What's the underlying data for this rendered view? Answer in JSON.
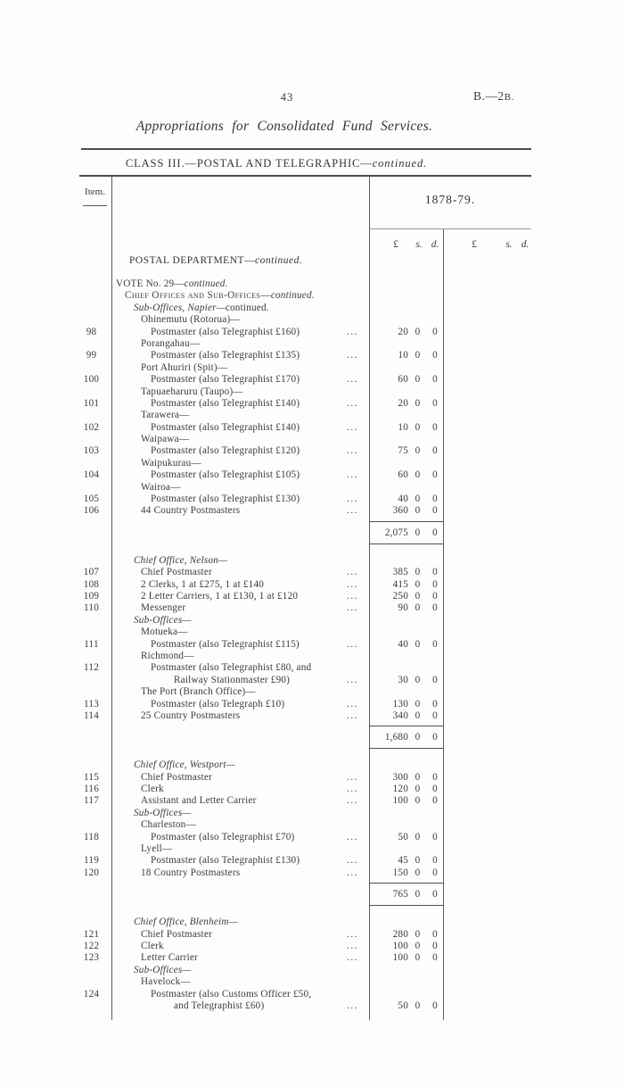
{
  "page": {
    "page_number": "43",
    "doc_ref": {
      "prefix": "B.—2",
      "suffix": "B."
    },
    "title": "Appropriations for Consolidated Fund Services.",
    "class_heading": {
      "main": "CLASS III.—POSTAL AND TELEGRAPHIC—",
      "cont": "continued."
    }
  },
  "table": {
    "item_header": "Item.",
    "year_header": "1878-79.",
    "money": {
      "pounds": "£",
      "shillings": "s.",
      "pence": "d."
    },
    "dept_heading": {
      "main": "POSTAL DEPARTMENT—",
      "cont": "continued."
    },
    "dot_leader": "...",
    "rows": [
      {
        "ind": 0,
        "segs": [
          [
            "VOTE No. 29—",
            ""
          ],
          [
            "continued.",
            "i"
          ]
        ]
      },
      {
        "ind": 1,
        "segs": [
          [
            "Chief Offices and Sub-Offices—",
            "sc"
          ],
          [
            "continued.",
            "i"
          ]
        ]
      },
      {
        "ind": 2,
        "segs": [
          [
            "Sub-Offices, Napier—",
            "i"
          ],
          [
            "continued.",
            ""
          ]
        ]
      },
      {
        "ind": 3,
        "segs": [
          [
            "Ohinemutu (Rotorua)—",
            ""
          ]
        ]
      },
      {
        "item": "98",
        "ind": 4,
        "segs": [
          [
            "Postmaster (also Telegraphist £160)",
            ""
          ]
        ],
        "dots": true,
        "amt": [
          "20",
          "0",
          "0"
        ]
      },
      {
        "ind": 3,
        "segs": [
          [
            "Porangahau—",
            ""
          ]
        ]
      },
      {
        "item": "99",
        "ind": 4,
        "segs": [
          [
            "Postmaster (also Telegraphist £135)",
            ""
          ]
        ],
        "dots": true,
        "amt": [
          "10",
          "0",
          "0"
        ]
      },
      {
        "ind": 3,
        "segs": [
          [
            "Port Ahuriri (Spit)—",
            ""
          ]
        ]
      },
      {
        "item": "100",
        "ind": 4,
        "segs": [
          [
            "Postmaster (also Telegraphist £170)",
            ""
          ]
        ],
        "dots": true,
        "amt": [
          "60",
          "0",
          "0"
        ]
      },
      {
        "ind": 3,
        "segs": [
          [
            "Tapuaeharuru (Taupo)—",
            ""
          ]
        ]
      },
      {
        "item": "101",
        "ind": 4,
        "segs": [
          [
            "Postmaster (also Telegraphist £140)",
            ""
          ]
        ],
        "dots": true,
        "amt": [
          "20",
          "0",
          "0"
        ]
      },
      {
        "ind": 3,
        "segs": [
          [
            "Tarawera—",
            ""
          ]
        ]
      },
      {
        "item": "102",
        "ind": 4,
        "segs": [
          [
            "Postmaster (also Telegraphist £140)",
            ""
          ]
        ],
        "dots": true,
        "amt": [
          "10",
          "0",
          "0"
        ]
      },
      {
        "ind": 3,
        "segs": [
          [
            "Waipawa—",
            ""
          ]
        ]
      },
      {
        "item": "103",
        "ind": 4,
        "segs": [
          [
            "Postmaster (also Telegraphist £120)",
            ""
          ]
        ],
        "dots": true,
        "amt": [
          "75",
          "0",
          "0"
        ]
      },
      {
        "ind": 3,
        "segs": [
          [
            "Waipukurau—",
            ""
          ]
        ]
      },
      {
        "item": "104",
        "ind": 4,
        "segs": [
          [
            "Postmaster (also Telegraphist £105)",
            ""
          ]
        ],
        "dots": true,
        "amt": [
          "60",
          "0",
          "0"
        ]
      },
      {
        "ind": 3,
        "segs": [
          [
            "Wairoa—",
            ""
          ]
        ]
      },
      {
        "item": "105",
        "ind": 4,
        "segs": [
          [
            "Postmaster (also Telegraphist £130)",
            ""
          ]
        ],
        "dots": true,
        "amt": [
          "40",
          "0",
          "0"
        ]
      },
      {
        "item": "106",
        "ind": 3,
        "segs": [
          [
            "44 Country Postmasters",
            ""
          ]
        ],
        "dots": true,
        "amt": [
          "360",
          "0",
          "0"
        ]
      },
      {
        "k": "sub",
        "amt": [
          "2,075",
          "0",
          "0"
        ]
      },
      {
        "ind": 2,
        "segs": [
          [
            "Chief Office, Nelson—",
            "i"
          ]
        ]
      },
      {
        "item": "107",
        "ind": 3,
        "segs": [
          [
            "Chief Postmaster",
            ""
          ]
        ],
        "dots": true,
        "amt": [
          "385",
          "0",
          "0"
        ]
      },
      {
        "item": "108",
        "ind": 3,
        "segs": [
          [
            "2 Clerks, 1 at £275, 1 at £140",
            ""
          ]
        ],
        "dots": true,
        "amt": [
          "415",
          "0",
          "0"
        ]
      },
      {
        "item": "109",
        "ind": 3,
        "segs": [
          [
            "2 Letter Carriers, 1 at £130, 1 at £120",
            ""
          ]
        ],
        "dots": true,
        "amt": [
          "250",
          "0",
          "0"
        ]
      },
      {
        "item": "110",
        "ind": 3,
        "segs": [
          [
            "Messenger",
            ""
          ]
        ],
        "dots": true,
        "amt": [
          "90",
          "0",
          "0"
        ]
      },
      {
        "ind": 2,
        "segs": [
          [
            "Sub-Offices—",
            "i"
          ]
        ]
      },
      {
        "ind": 3,
        "segs": [
          [
            "Motueka—",
            ""
          ]
        ]
      },
      {
        "item": "111",
        "ind": 4,
        "segs": [
          [
            "Postmaster (also Telegraphist £115)",
            ""
          ]
        ],
        "dots": true,
        "amt": [
          "40",
          "0",
          "0"
        ]
      },
      {
        "ind": 3,
        "segs": [
          [
            "Richmond—",
            ""
          ]
        ]
      },
      {
        "item": "112",
        "ind": 4,
        "segs": [
          [
            "Postmaster (also Telegraphist £80, and",
            ""
          ]
        ]
      },
      {
        "ind": 5,
        "segs": [
          [
            "Railway Stationmaster £90)",
            ""
          ]
        ],
        "dots": true,
        "amt": [
          "30",
          "0",
          "0"
        ]
      },
      {
        "ind": 3,
        "segs": [
          [
            "The Port (Branch Office)—",
            ""
          ]
        ]
      },
      {
        "item": "113",
        "ind": 4,
        "segs": [
          [
            "Postmaster (also Telegraph £10)",
            ""
          ]
        ],
        "dots": true,
        "amt": [
          "130",
          "0",
          "0"
        ]
      },
      {
        "item": "114",
        "ind": 3,
        "segs": [
          [
            "25 Country Postmasters",
            ""
          ]
        ],
        "dots": true,
        "amt": [
          "340",
          "0",
          "0"
        ]
      },
      {
        "k": "sub",
        "amt": [
          "1,680",
          "0",
          "0"
        ]
      },
      {
        "ind": 2,
        "segs": [
          [
            "Chief Office, Westport—",
            "i"
          ]
        ]
      },
      {
        "item": "115",
        "ind": 3,
        "segs": [
          [
            "Chief Postmaster",
            ""
          ]
        ],
        "dots": true,
        "amt": [
          "300",
          "0",
          "0"
        ]
      },
      {
        "item": "116",
        "ind": 3,
        "segs": [
          [
            "Clerk",
            ""
          ]
        ],
        "dots": true,
        "amt": [
          "120",
          "0",
          "0"
        ]
      },
      {
        "item": "117",
        "ind": 3,
        "segs": [
          [
            "Assistant and Letter Carrier",
            ""
          ]
        ],
        "dots": true,
        "amt": [
          "100",
          "0",
          "0"
        ]
      },
      {
        "ind": 2,
        "segs": [
          [
            "Sub-Offices—",
            "i"
          ]
        ]
      },
      {
        "ind": 3,
        "segs": [
          [
            "Charleston—",
            ""
          ]
        ]
      },
      {
        "item": "118",
        "ind": 4,
        "segs": [
          [
            "Postmaster (also Telegraphist £70)",
            ""
          ]
        ],
        "dots": true,
        "amt": [
          "50",
          "0",
          "0"
        ]
      },
      {
        "ind": 3,
        "segs": [
          [
            "Lyell—",
            ""
          ]
        ]
      },
      {
        "item": "119",
        "ind": 4,
        "segs": [
          [
            "Postmaster (also Telegraphist £130)",
            ""
          ]
        ],
        "dots": true,
        "amt": [
          "45",
          "0",
          "0"
        ]
      },
      {
        "item": "120",
        "ind": 3,
        "segs": [
          [
            "18 Country Postmasters",
            ""
          ]
        ],
        "dots": true,
        "amt": [
          "150",
          "0",
          "0"
        ]
      },
      {
        "k": "sub",
        "amt": [
          "765",
          "0",
          "0"
        ]
      },
      {
        "ind": 2,
        "segs": [
          [
            "Chief Office, Blenheim—",
            "i"
          ]
        ]
      },
      {
        "item": "121",
        "ind": 3,
        "segs": [
          [
            "Chief Postmaster",
            ""
          ]
        ],
        "dots": true,
        "amt": [
          "280",
          "0",
          "0"
        ]
      },
      {
        "item": "122",
        "ind": 3,
        "segs": [
          [
            "Clerk",
            ""
          ]
        ],
        "dots": true,
        "amt": [
          "100",
          "0",
          "0"
        ]
      },
      {
        "item": "123",
        "ind": 3,
        "segs": [
          [
            "Letter Carrier",
            ""
          ]
        ],
        "dots": true,
        "amt": [
          "100",
          "0",
          "0"
        ]
      },
      {
        "ind": 2,
        "segs": [
          [
            "Sub-Offices—",
            "i"
          ]
        ]
      },
      {
        "ind": 3,
        "segs": [
          [
            "Havelock—",
            ""
          ]
        ]
      },
      {
        "item": "124",
        "ind": 4,
        "segs": [
          [
            "Postmaster (also Customs Officer £50,",
            ""
          ]
        ]
      },
      {
        "ind": 5,
        "segs": [
          [
            "and Telegraphist £60)",
            ""
          ]
        ],
        "dots": true,
        "amt": [
          "50",
          "0",
          "0"
        ]
      }
    ]
  }
}
